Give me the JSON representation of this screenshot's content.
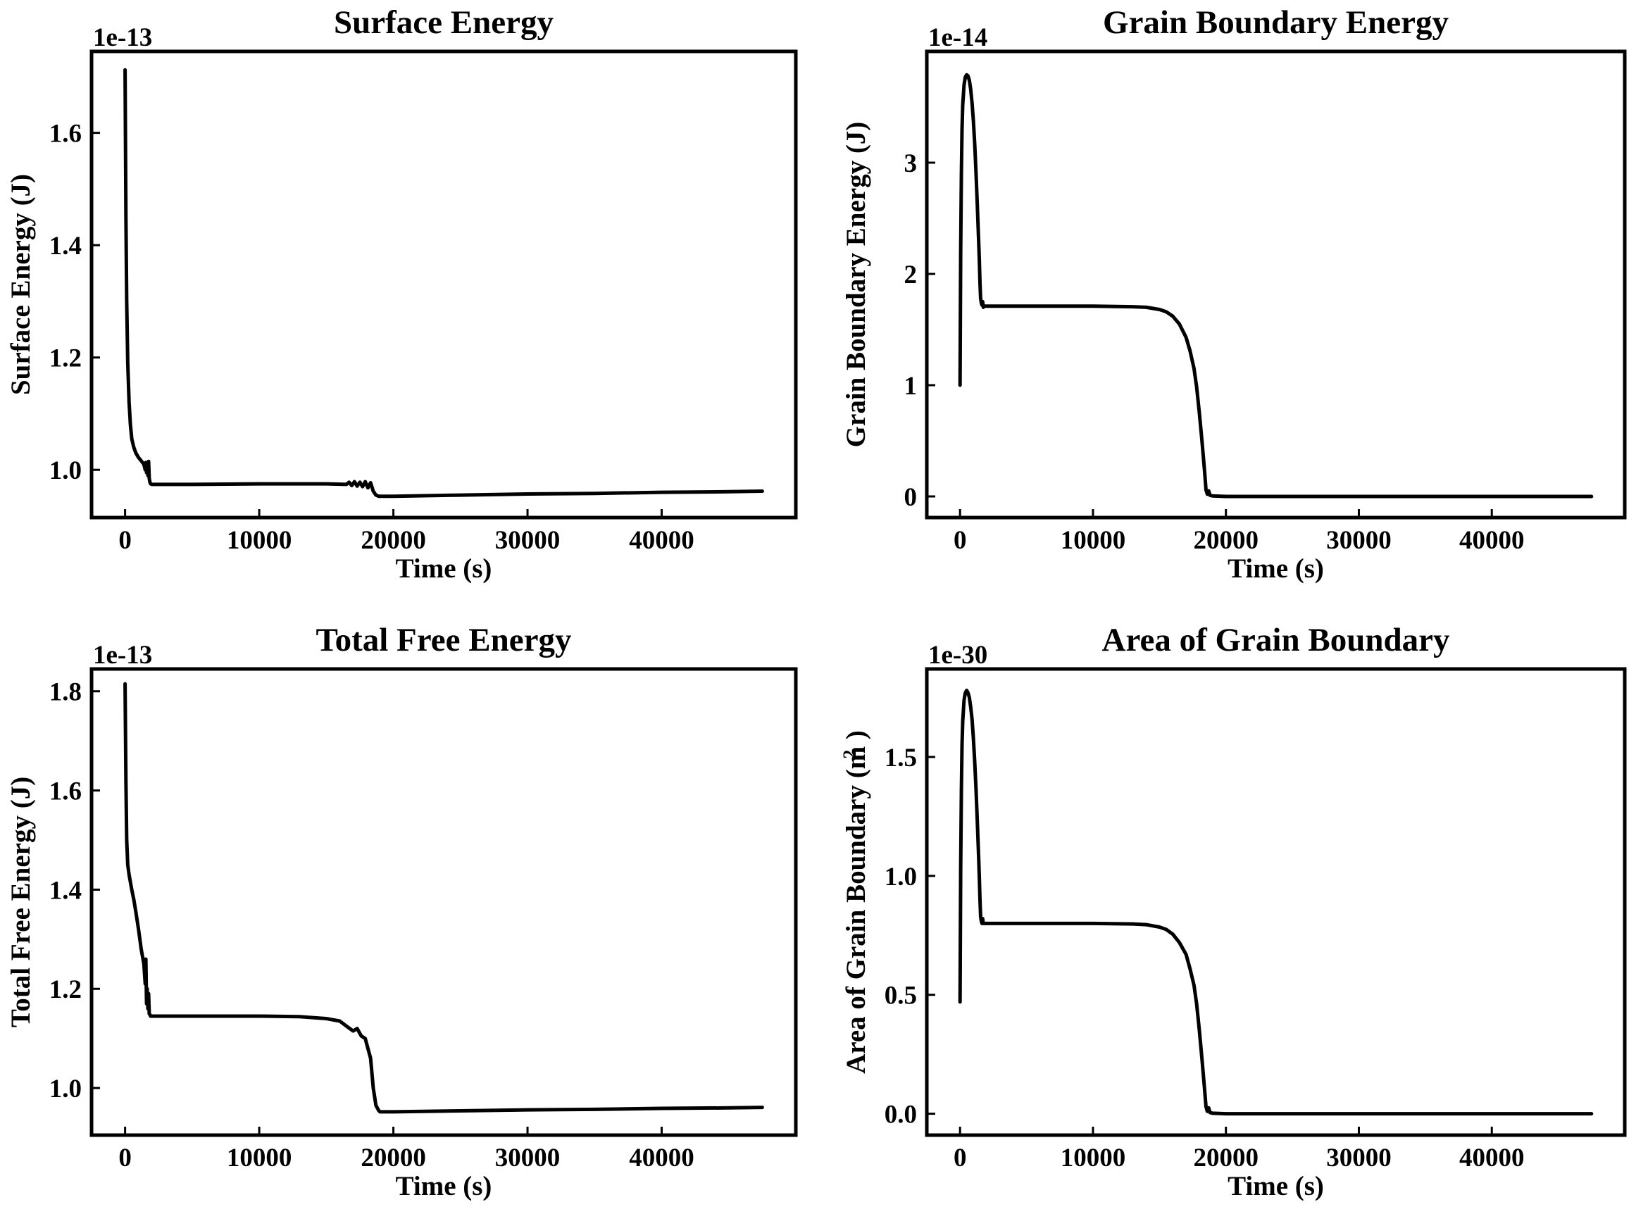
{
  "chart_data": [
    {
      "type": "line",
      "title": "Surface Energy",
      "xlabel": "Time (s)",
      "ylabel": "Surface Energy (J)",
      "ylabel_sup": "",
      "y_offset_label": "1e-13",
      "xlim": [
        -2500,
        50000
      ],
      "ylim": [
        0.915,
        1.745
      ],
      "xticks": [
        0,
        10000,
        20000,
        30000,
        40000
      ],
      "yticks": [
        1.0,
        1.2,
        1.4,
        1.6
      ],
      "ytick_decimals": 1,
      "grid": false,
      "series": [
        {
          "x": [
            0,
            60,
            120,
            200,
            300,
            400,
            500,
            650,
            800,
            1000,
            1200,
            1400,
            1500,
            1550,
            1600,
            1650,
            1700,
            1750,
            1800,
            1850,
            1900,
            2000,
            3000,
            5000,
            10000,
            15000,
            16500,
            16700,
            16900,
            17100,
            17300,
            17500,
            17700,
            17900,
            18100,
            18300,
            18500,
            18700,
            18900,
            19000,
            20000,
            25000,
            30000,
            35000,
            40000,
            45000,
            47500
          ],
          "values": [
            1.712,
            1.45,
            1.3,
            1.19,
            1.12,
            1.08,
            1.055,
            1.04,
            1.03,
            1.022,
            1.016,
            1.01,
            1.0,
            1.013,
            0.995,
            1.01,
            0.99,
            1.015,
            0.985,
            0.978,
            0.975,
            0.974,
            0.974,
            0.974,
            0.975,
            0.975,
            0.974,
            0.978,
            0.972,
            0.979,
            0.971,
            0.978,
            0.97,
            0.979,
            0.968,
            0.977,
            0.962,
            0.955,
            0.953,
            0.953,
            0.953,
            0.955,
            0.957,
            0.958,
            0.96,
            0.961,
            0.962
          ]
        }
      ]
    },
    {
      "type": "line",
      "title": "Grain Boundary Energy",
      "xlabel": "Time (s)",
      "ylabel": "Grain Boundary Energy (J)",
      "ylabel_sup": "",
      "y_offset_label": "1e-14",
      "xlim": [
        -2500,
        50000
      ],
      "ylim": [
        -0.19,
        4.0
      ],
      "xticks": [
        0,
        10000,
        20000,
        30000,
        40000
      ],
      "yticks": [
        0,
        1,
        2,
        3
      ],
      "ytick_decimals": 0,
      "grid": false,
      "series": [
        {
          "x": [
            0,
            50,
            100,
            150,
            200,
            300,
            400,
            500,
            600,
            700,
            800,
            900,
            1000,
            1100,
            1200,
            1300,
            1400,
            1450,
            1500,
            1550,
            1600,
            1650,
            1700,
            1750,
            1800,
            2000,
            5000,
            10000,
            13000,
            14000,
            15000,
            15500,
            16000,
            16500,
            17000,
            17300,
            17600,
            17800,
            18000,
            18200,
            18400,
            18500,
            18600,
            18700,
            18800,
            19000,
            20000,
            30000,
            40000,
            47500
          ],
          "values": [
            1.0,
            2.2,
            2.9,
            3.3,
            3.52,
            3.7,
            3.77,
            3.79,
            3.78,
            3.74,
            3.66,
            3.54,
            3.38,
            3.17,
            2.92,
            2.62,
            2.3,
            2.12,
            1.92,
            1.78,
            1.74,
            1.72,
            1.75,
            1.7,
            1.71,
            1.71,
            1.71,
            1.71,
            1.705,
            1.7,
            1.68,
            1.66,
            1.62,
            1.55,
            1.43,
            1.31,
            1.15,
            0.98,
            0.75,
            0.5,
            0.22,
            0.06,
            0.02,
            0.05,
            0.01,
            0.005,
            0.0,
            0.0,
            0.0,
            0.0
          ]
        }
      ]
    },
    {
      "type": "line",
      "title": "Total Free Energy",
      "xlabel": "Time (s)",
      "ylabel": "Total Free Energy (J)",
      "ylabel_sup": "",
      "y_offset_label": "1e-13",
      "xlim": [
        -2500,
        50000
      ],
      "ylim": [
        0.905,
        1.845
      ],
      "xticks": [
        0,
        10000,
        20000,
        30000,
        40000
      ],
      "yticks": [
        1.0,
        1.2,
        1.4,
        1.6,
        1.8
      ],
      "ytick_decimals": 1,
      "grid": false,
      "series": [
        {
          "x": [
            0,
            60,
            120,
            200,
            300,
            400,
            500,
            650,
            800,
            1000,
            1200,
            1400,
            1500,
            1550,
            1600,
            1650,
            1700,
            1750,
            1800,
            1850,
            1900,
            2000,
            3000,
            5000,
            10000,
            13000,
            15000,
            16000,
            16500,
            17000,
            17300,
            17600,
            17900,
            18100,
            18300,
            18500,
            18700,
            18900,
            19000,
            20000,
            25000,
            30000,
            35000,
            40000,
            45000,
            47500
          ],
          "values": [
            1.815,
            1.62,
            1.5,
            1.45,
            1.43,
            1.415,
            1.4,
            1.38,
            1.355,
            1.32,
            1.28,
            1.25,
            1.21,
            1.26,
            1.17,
            1.2,
            1.16,
            1.19,
            1.15,
            1.148,
            1.145,
            1.145,
            1.145,
            1.145,
            1.145,
            1.144,
            1.14,
            1.135,
            1.125,
            1.115,
            1.12,
            1.105,
            1.1,
            1.08,
            1.06,
            1.0,
            0.965,
            0.955,
            0.952,
            0.952,
            0.954,
            0.956,
            0.957,
            0.959,
            0.96,
            0.961
          ]
        }
      ]
    },
    {
      "type": "line",
      "title": "Area of Grain Boundary",
      "xlabel": "Time (s)",
      "ylabel": "Area of Grain Boundary (m )",
      "ylabel_sup": "2",
      "y_offset_label": "1e-30",
      "xlim": [
        -2500,
        50000
      ],
      "ylim": [
        -0.09,
        1.87
      ],
      "xticks": [
        0,
        10000,
        20000,
        30000,
        40000
      ],
      "yticks": [
        0.0,
        0.5,
        1.0,
        1.5
      ],
      "ytick_decimals": 1,
      "grid": false,
      "series": [
        {
          "x": [
            0,
            50,
            100,
            150,
            200,
            300,
            400,
            500,
            600,
            700,
            800,
            900,
            1000,
            1100,
            1200,
            1300,
            1400,
            1450,
            1500,
            1550,
            1600,
            1650,
            1700,
            1750,
            1800,
            2000,
            5000,
            10000,
            13000,
            14000,
            15000,
            15500,
            16000,
            16500,
            17000,
            17300,
            17600,
            17800,
            18000,
            18200,
            18400,
            18500,
            18600,
            18700,
            18800,
            19000,
            20000,
            30000,
            40000,
            47500
          ],
          "values": [
            0.47,
            1.03,
            1.36,
            1.55,
            1.65,
            1.74,
            1.77,
            1.78,
            1.77,
            1.75,
            1.71,
            1.66,
            1.58,
            1.48,
            1.37,
            1.23,
            1.08,
            0.99,
            0.9,
            0.83,
            0.81,
            0.8,
            0.82,
            0.8,
            0.8,
            0.8,
            0.8,
            0.8,
            0.798,
            0.795,
            0.785,
            0.775,
            0.755,
            0.72,
            0.67,
            0.61,
            0.54,
            0.46,
            0.35,
            0.23,
            0.1,
            0.03,
            0.01,
            0.025,
            0.005,
            0.002,
            0.0,
            0.0,
            0.0,
            0.0
          ]
        }
      ]
    }
  ]
}
